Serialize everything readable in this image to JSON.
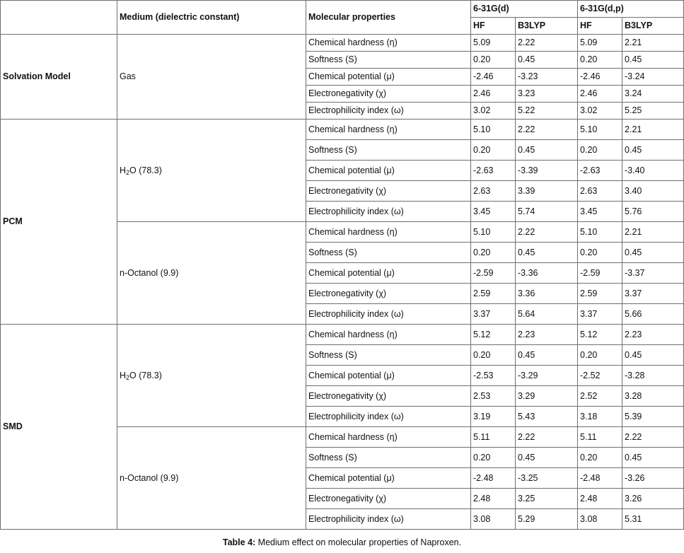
{
  "header": {
    "medium_col": "Medium (dielectric constant)",
    "property_col": "Molecular properties",
    "basis_d": "6-31G(d)",
    "basis_dp": "6-31G(d,p)",
    "hf": "HF",
    "b3lyp": "B3LYP"
  },
  "models": [
    {
      "name": "Solvation Model",
      "media": [
        {
          "label": "Gas",
          "rows": [
            [
              "Chemical hardness (η)",
              "5.09",
              "2.22",
              "5.09",
              "2.21"
            ],
            [
              "Softness (S)",
              "0.20",
              "0.45",
              "0.20",
              "0.45"
            ],
            [
              "Chemical potential (μ)",
              "-2.46",
              "-3.23",
              "-2.46",
              "-3.24"
            ],
            [
              "Electronegativity (χ)",
              "2.46",
              "3.23",
              "2.46",
              "3.24"
            ],
            [
              "Electrophilicity index (ω)",
              "3.02",
              "5.22",
              "3.02",
              "5.25"
            ]
          ]
        }
      ]
    },
    {
      "name": "PCM",
      "media": [
        {
          "label_main": "H",
          "label_sub": "2",
          "label_rest": "O (78.3)",
          "rows": [
            [
              "Chemical hardness (η)",
              "5.10",
              "2.22",
              "5.10",
              "2.21"
            ],
            [
              "Softness (S)",
              "0.20",
              "0.45",
              "0.20",
              "0.45"
            ],
            [
              "Chemical potential (μ)",
              "-2.63",
              "-3.39",
              "-2.63",
              "-3.40"
            ],
            [
              "Electronegativity (χ)",
              "2.63",
              "3.39",
              "2.63",
              "3.40"
            ],
            [
              "Electrophilicity index (ω)",
              "3.45",
              "5.74",
              "3.45",
              "5.76"
            ]
          ]
        },
        {
          "label": "n-Octanol (9.9)",
          "rows": [
            [
              "Chemical hardness (η)",
              "5.10",
              "2.22",
              "5.10",
              "2.21"
            ],
            [
              "Softness (S)",
              "0.20",
              "0.45",
              "0.20",
              "0.45"
            ],
            [
              "Chemical potential (μ)",
              "-2.59",
              "-3.36",
              "-2.59",
              "-3.37"
            ],
            [
              "Electronegativity (χ)",
              "2.59",
              "3.36",
              "2.59",
              "3.37"
            ],
            [
              "Electrophilicity index (ω)",
              "3.37",
              "5.64",
              "3.37",
              "5.66"
            ]
          ]
        }
      ]
    },
    {
      "name": "SMD",
      "media": [
        {
          "label_main": "H",
          "label_sub": "2",
          "label_rest": "O (78.3)",
          "rows": [
            [
              "Chemical hardness (η)",
              "5.12",
              "2.23",
              "5.12",
              "2.23"
            ],
            [
              "Softness (S)",
              "0.20",
              "0.45",
              "0.20",
              "0.45"
            ],
            [
              "Chemical potential (μ)",
              "-2.53",
              "-3.29",
              "-2.52",
              "-3.28"
            ],
            [
              "Electronegativity (χ)",
              "2.53",
              "3.29",
              "2.52",
              "3.28"
            ],
            [
              "Electrophilicity index (ω)",
              "3.19",
              "5.43",
              "3.18",
              "5.39"
            ]
          ]
        },
        {
          "label": "n-Octanol (9.9)",
          "rows": [
            [
              "Chemical hardness (η)",
              "5.11",
              "2.22",
              "5.11",
              "2.22"
            ],
            [
              "Softness (S)",
              "0.20",
              "0.45",
              "0.20",
              "0.45"
            ],
            [
              "Chemical potential (μ)",
              "-2.48",
              "-3.25",
              "-2.48",
              "-3.26"
            ],
            [
              "Electronegativity (χ)",
              "2.48",
              "3.25",
              "2.48",
              "3.26"
            ],
            [
              "Electrophilicity index (ω)",
              "3.08",
              "5.29",
              "3.08",
              "5.31"
            ]
          ]
        }
      ]
    }
  ],
  "caption": {
    "label": "Table 4:",
    "text": " Medium effect on molecular properties of Naproxen."
  }
}
